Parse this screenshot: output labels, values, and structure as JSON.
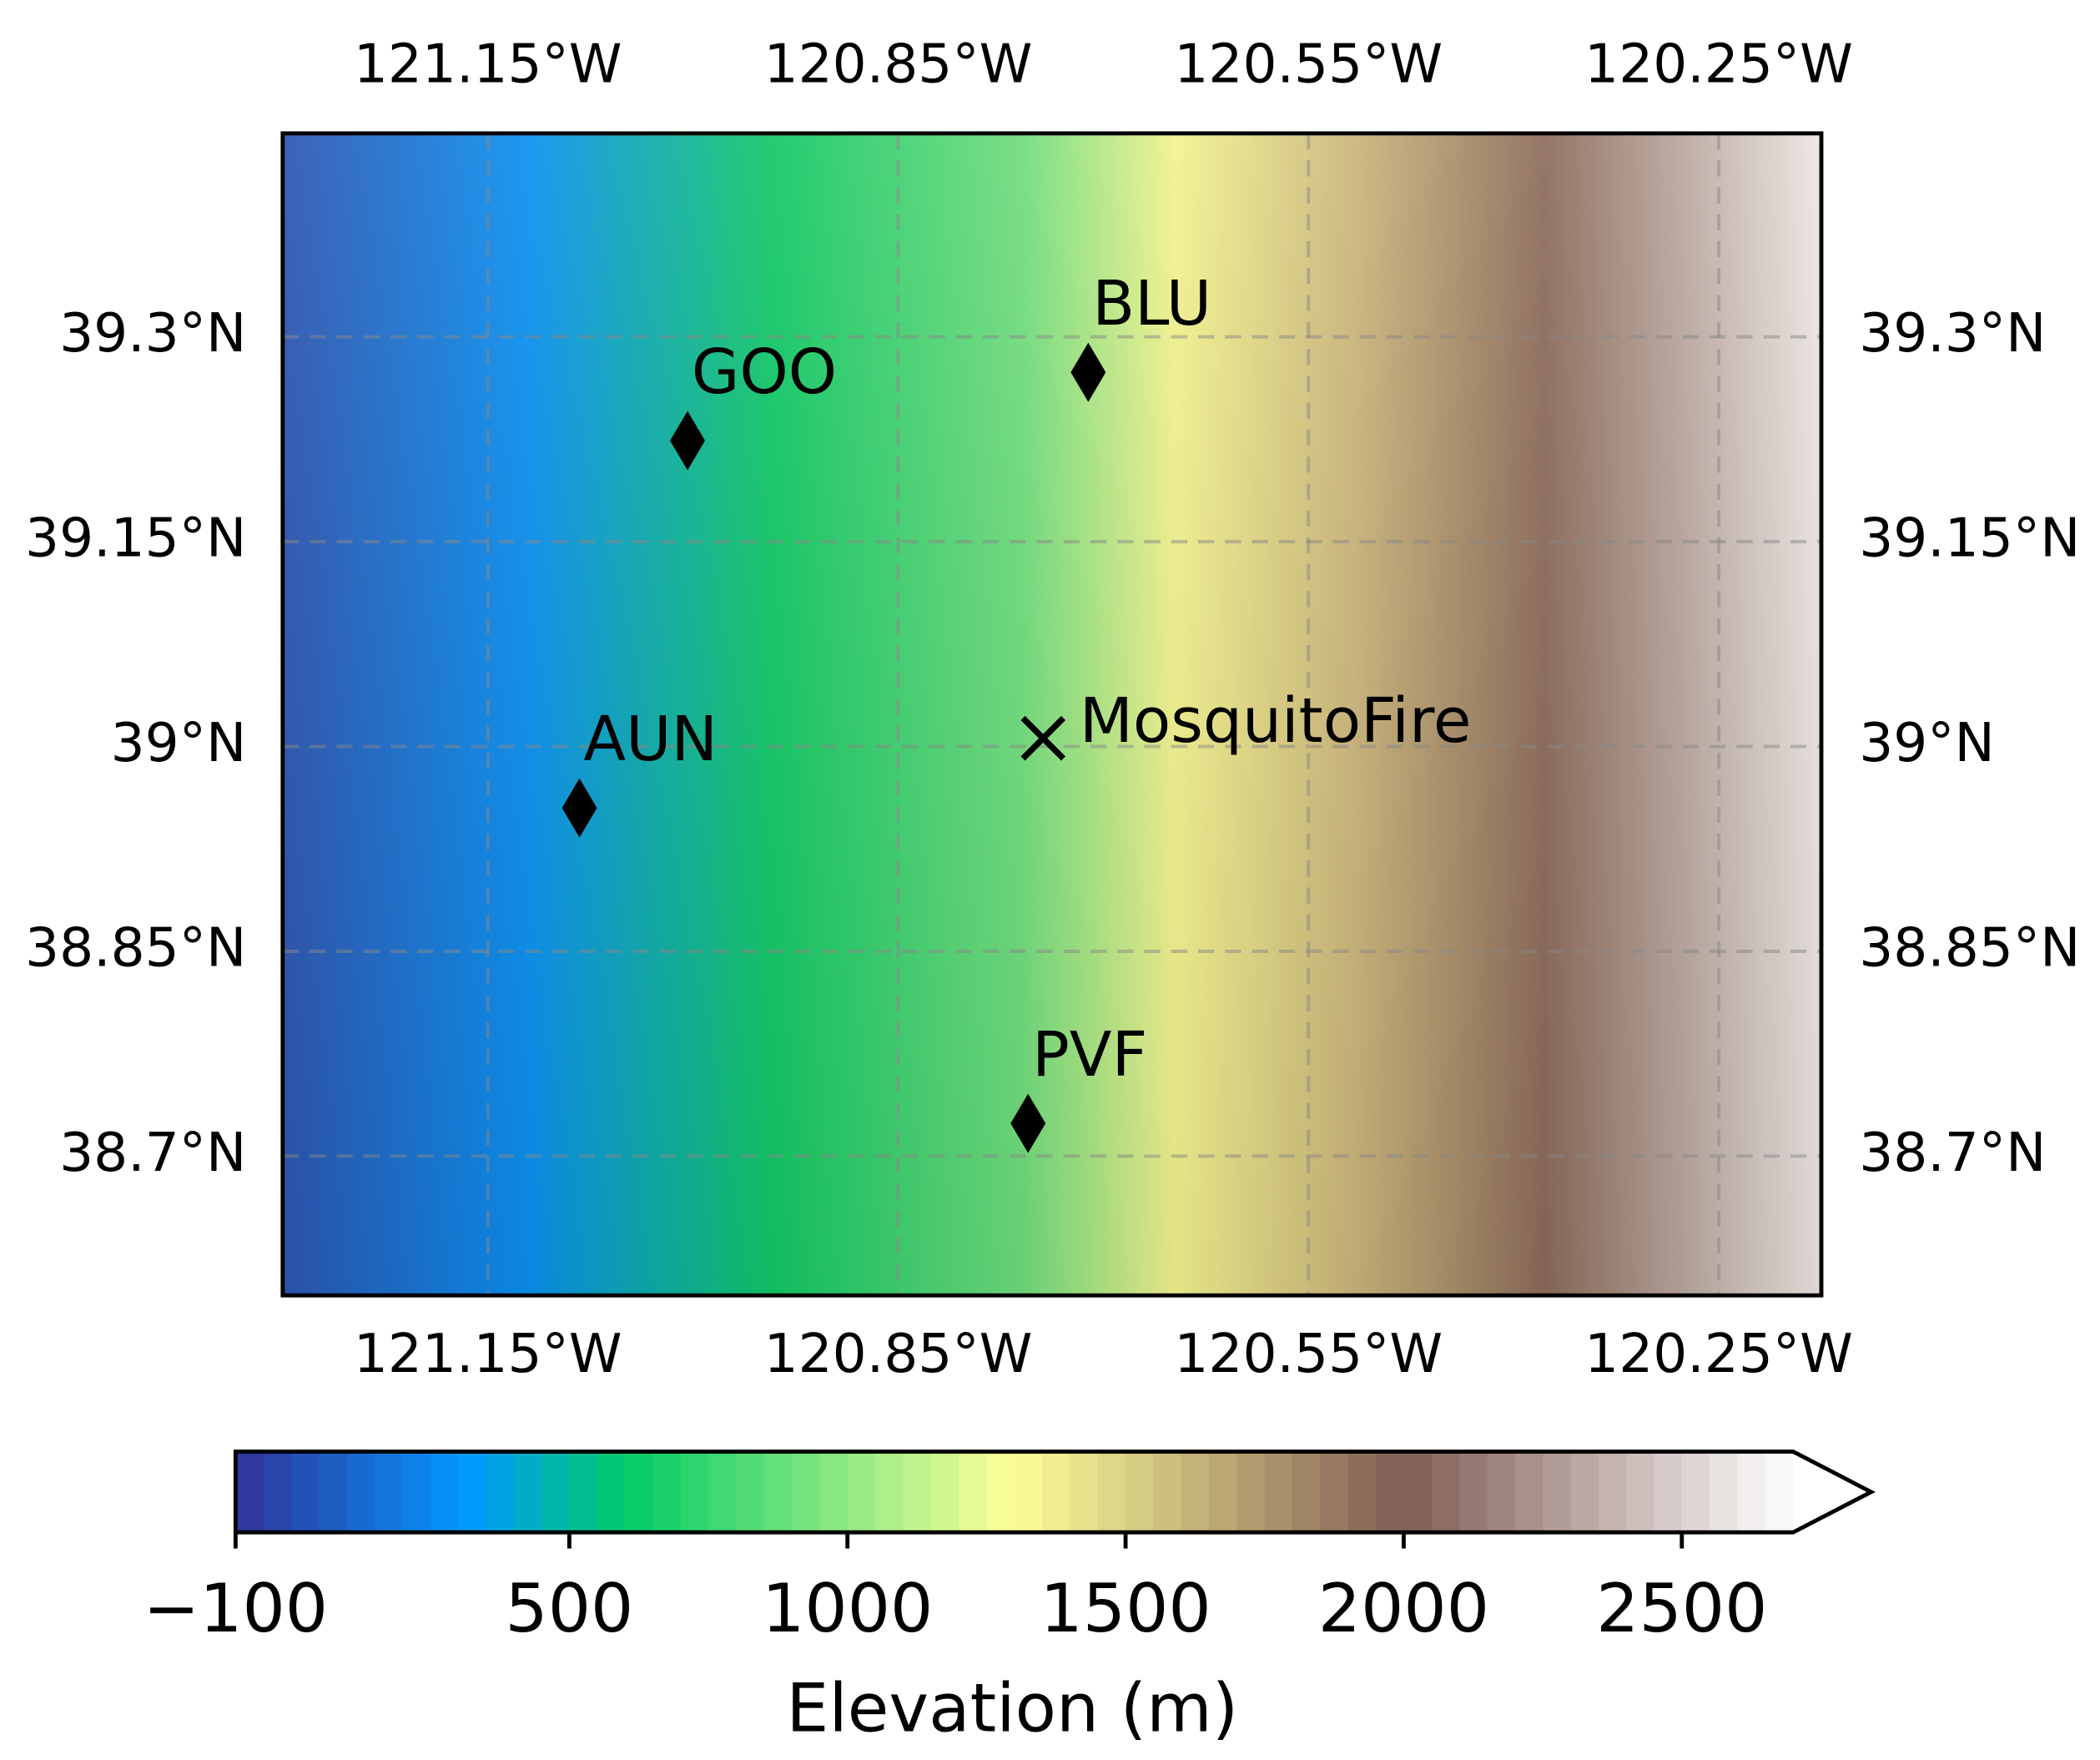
{
  "chart_data": {
    "type": "map",
    "xlim": [
      -121.3,
      -120.175
    ],
    "ylim": [
      38.598,
      39.449
    ],
    "xticks": [
      {
        "value": -121.15,
        "label": "121.15°W"
      },
      {
        "value": -120.85,
        "label": "120.85°W"
      },
      {
        "value": -120.55,
        "label": "120.55°W"
      },
      {
        "value": -120.25,
        "label": "120.25°W"
      }
    ],
    "yticks": [
      {
        "value": 38.7,
        "label": "38.7°N"
      },
      {
        "value": 38.85,
        "label": "38.85°N"
      },
      {
        "value": 39.0,
        "label": "39°N"
      },
      {
        "value": 39.15,
        "label": "39.15°N"
      },
      {
        "value": 39.3,
        "label": "39.3°N"
      }
    ],
    "grid": true,
    "points": [
      {
        "name": "GOO",
        "lon": -121.004,
        "lat": 39.224,
        "marker": "diamond"
      },
      {
        "name": "BLU",
        "lon": -120.711,
        "lat": 39.274,
        "marker": "diamond"
      },
      {
        "name": "AUN",
        "lon": -121.083,
        "lat": 38.955,
        "marker": "diamond"
      },
      {
        "name": "PVF",
        "lon": -120.755,
        "lat": 38.724,
        "marker": "diamond"
      },
      {
        "name": "MosquitoFire",
        "lon": -120.744,
        "lat": 39.006,
        "marker": "x"
      }
    ],
    "colorbar": {
      "label": "Elevation (m)",
      "lim": [
        -100,
        2700
      ],
      "step": 50,
      "extend": "max",
      "colormap": "terrain",
      "ticks": [
        {
          "value": -100,
          "label": "−100"
        },
        500,
        1000,
        1500,
        2000,
        2500
      ]
    }
  }
}
